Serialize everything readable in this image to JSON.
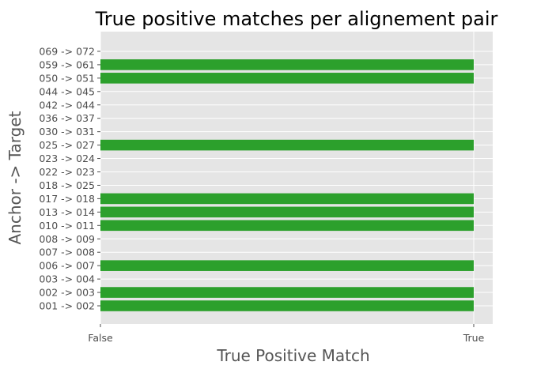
{
  "chart_data": {
    "type": "bar",
    "orientation": "horizontal",
    "title": "True positive matches per alignement pair",
    "xlabel": "True Positive Match",
    "ylabel": "Anchor -> Target",
    "x_tick_labels": [
      "False",
      "True"
    ],
    "xlim": [
      0,
      1
    ],
    "grid": true,
    "bar_color": "#2ca02c",
    "background_color": "#e5e5e5",
    "grid_color": "#ffffff",
    "categories": [
      "001 -> 002",
      "002 -> 003",
      "003 -> 004",
      "006 -> 007",
      "007 -> 008",
      "008 -> 009",
      "010 -> 011",
      "013 -> 014",
      "017 -> 018",
      "018 -> 025",
      "022 -> 023",
      "023 -> 024",
      "025 -> 027",
      "030 -> 031",
      "036 -> 037",
      "042 -> 044",
      "044 -> 045",
      "050 -> 051",
      "059 -> 061",
      "069 -> 072"
    ],
    "values": [
      1,
      1,
      0,
      1,
      0,
      0,
      1,
      1,
      1,
      0,
      0,
      0,
      1,
      0,
      0,
      0,
      0,
      1,
      1,
      0
    ]
  }
}
